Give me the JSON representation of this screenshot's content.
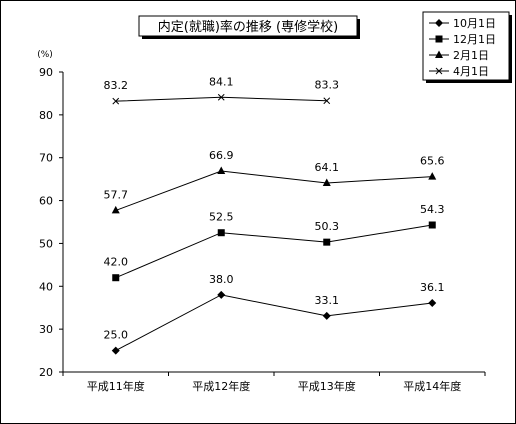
{
  "chart_data": {
    "type": "line",
    "title": "内定(就職)率の推移 (専修学校)",
    "ylabel": "(%)",
    "xlabel": "",
    "categories": [
      "平成11年度",
      "平成12年度",
      "平成13年度",
      "平成14年度"
    ],
    "ylim": [
      20,
      90
    ],
    "yticks": [
      20,
      30,
      40,
      50,
      60,
      70,
      80,
      90
    ],
    "grid": false,
    "legend_position": "top-right",
    "series": [
      {
        "name": "10月1日",
        "marker": "diamond",
        "values": [
          25.0,
          38.0,
          33.1,
          36.1
        ],
        "labels": [
          "25.0",
          "38.0",
          "33.1",
          "36.1"
        ]
      },
      {
        "name": "12月1日",
        "marker": "square",
        "values": [
          42.0,
          52.5,
          50.3,
          54.3
        ],
        "labels": [
          "42.0",
          "52.5",
          "50.3",
          "54.3"
        ]
      },
      {
        "name": "2月1日",
        "marker": "triangle",
        "values": [
          57.7,
          66.9,
          64.1,
          65.6
        ],
        "labels": [
          "57.7",
          "66.9",
          "64.1",
          "65.6"
        ]
      },
      {
        "name": "4月1日",
        "marker": "x",
        "values": [
          83.2,
          84.1,
          83.3,
          null
        ],
        "labels": [
          "83.2",
          "84.1",
          "83.3",
          null
        ]
      }
    ]
  }
}
